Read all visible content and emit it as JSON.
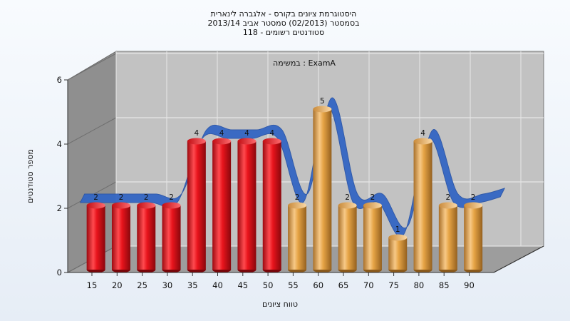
{
  "chart_data": {
    "type": "bar",
    "title_lines": [
      "היסטוגרמת ציונים בקורס - אלגברה לינארית",
      "בסמסטר  (02/2013)  סמסטר אביב 2013/14",
      "סטודנטים רשומים - 118"
    ],
    "annotation": "במשימה : ExamA",
    "xlabel": "טווח ציונים",
    "ylabel": "מספר סטודנטים",
    "categories": [
      "15",
      "20",
      "25",
      "30",
      "35",
      "40",
      "45",
      "50",
      "55",
      "60",
      "65",
      "70",
      "75",
      "80",
      "85",
      "90"
    ],
    "bars": [
      {
        "x": "15",
        "value": 2
      },
      {
        "x": "20",
        "value": 2
      },
      {
        "x": "25",
        "value": 2
      },
      {
        "x": "30",
        "value": 2
      },
      {
        "x": "35",
        "value": 4
      },
      {
        "x": "40",
        "value": 4
      },
      {
        "x": "45",
        "value": 4
      },
      {
        "x": "50",
        "value": 4
      },
      {
        "x": "55",
        "value": 2
      },
      {
        "x": "60",
        "value": 5
      },
      {
        "x": "65",
        "value": 2
      },
      {
        "x": "70",
        "value": 2
      },
      {
        "x": "75",
        "value": 1
      },
      {
        "x": "80",
        "value": 4
      },
      {
        "x": "85",
        "value": 2
      },
      {
        "x": "90",
        "value": 2
      }
    ],
    "bar_colors": {
      "below_55": "#e8141c",
      "from_55": "#e6a445"
    },
    "trend_color": "#3366c4",
    "ylim": [
      0,
      6
    ],
    "yticks": [
      0,
      2,
      4,
      6
    ],
    "grid": true,
    "legend": "none"
  }
}
